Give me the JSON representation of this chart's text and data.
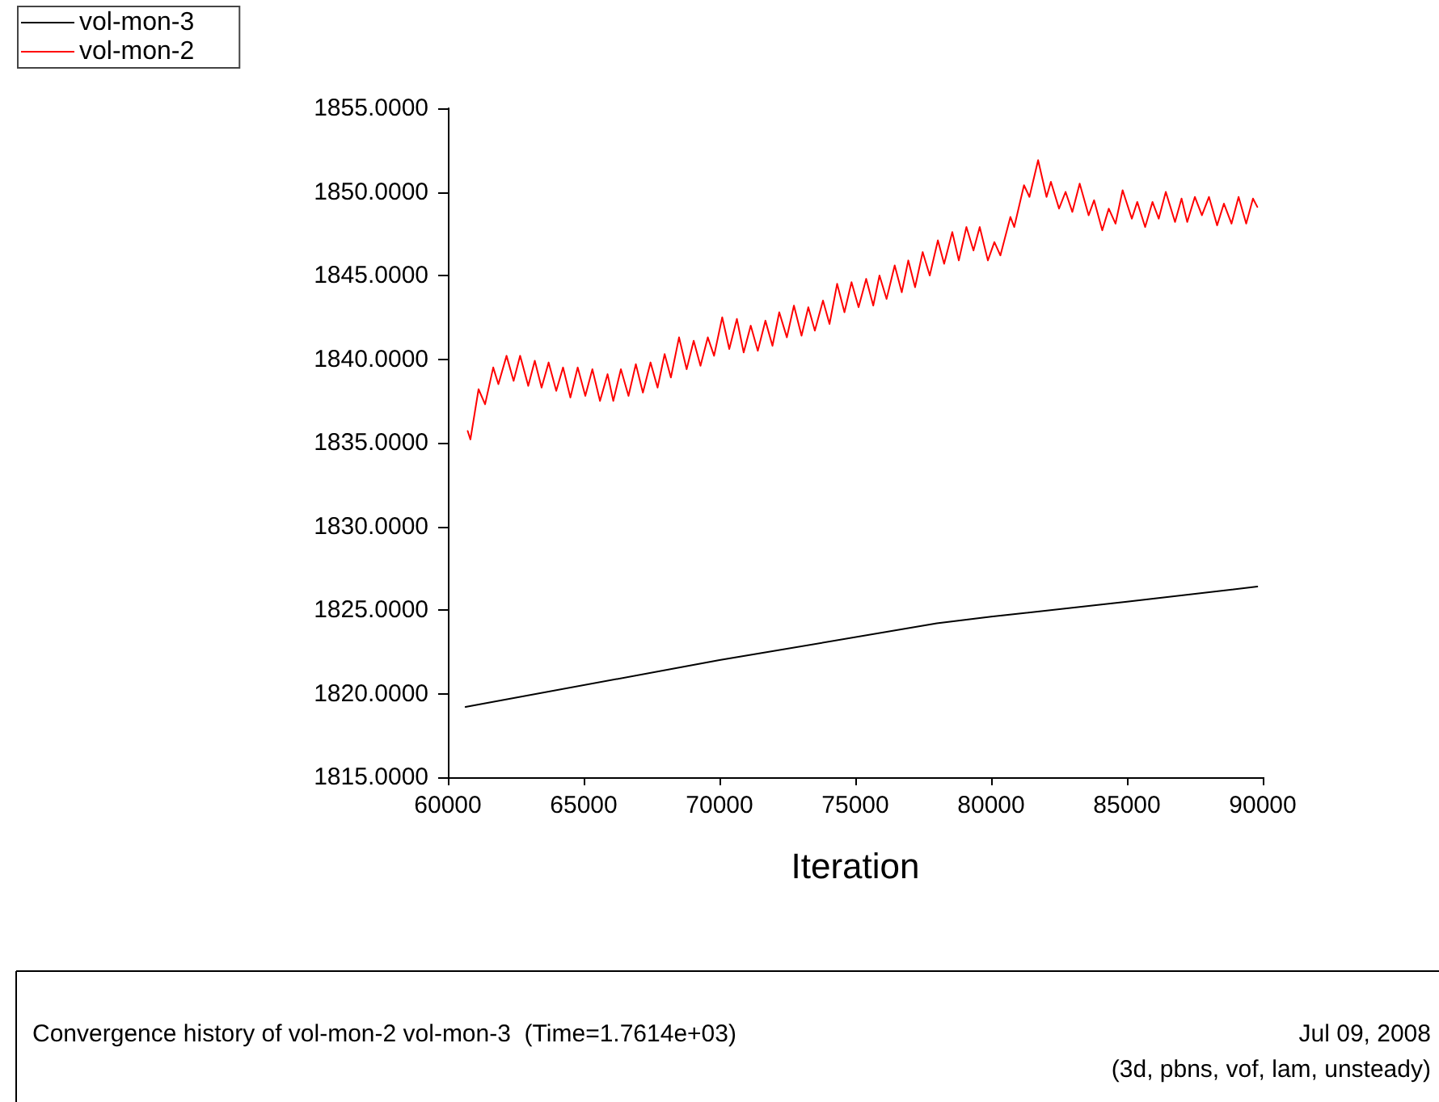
{
  "chart_data": {
    "type": "line",
    "xlabel": "Iteration",
    "xlim": [
      60000,
      90000
    ],
    "xticks": [
      60000,
      65000,
      70000,
      75000,
      80000,
      85000,
      90000
    ],
    "ylim": [
      1815,
      1855
    ],
    "yticks": [
      {
        "value": 1815,
        "label": "1815.0000"
      },
      {
        "value": 1820,
        "label": "1820.0000"
      },
      {
        "value": 1825,
        "label": "1825.0000"
      },
      {
        "value": 1830,
        "label": "1830.0000"
      },
      {
        "value": 1835,
        "label": "1835.0000"
      },
      {
        "value": 1840,
        "label": "1840.0000"
      },
      {
        "value": 1845,
        "label": "1845.0000"
      },
      {
        "value": 1850,
        "label": "1850.0000"
      },
      {
        "value": 1855,
        "label": "1855.0000"
      }
    ],
    "grid": false,
    "legend": "top left",
    "marker": "none",
    "line_style": "solid",
    "annotations": [
      "Convergence history of vol-mon-2 vol-mon-3  (Time=1.7614e+03)",
      "Jul 09, 2008",
      "(3d, pbns, vof, lam, unsteady)"
    ],
    "series": [
      {
        "name": "vol-mon-3",
        "color": "#000000",
        "x": [
          60650,
          70000,
          78000,
          80000,
          85000,
          89800
        ],
        "values": [
          1819.2,
          1822.0,
          1824.2,
          1824.6,
          1825.5,
          1826.4
        ]
      },
      {
        "name": "vol-mon-2",
        "color": "#ff0000",
        "x": [
          60730,
          60830,
          61130,
          61370,
          61670,
          61860,
          62160,
          62420,
          62660,
          62960,
          63200,
          63450,
          63710,
          63990,
          64240,
          64510,
          64780,
          65060,
          65320,
          65600,
          65880,
          66090,
          66370,
          66650,
          66920,
          67180,
          67460,
          67720,
          67980,
          68210,
          68510,
          68790,
          69050,
          69300,
          69570,
          69800,
          70100,
          70360,
          70640,
          70890,
          71150,
          71410,
          71690,
          71950,
          72200,
          72480,
          72740,
          73020,
          73270,
          73510,
          73810,
          74050,
          74330,
          74600,
          74860,
          75120,
          75400,
          75660,
          75890,
          76150,
          76450,
          76710,
          76950,
          77200,
          77480,
          77740,
          78040,
          78270,
          78570,
          78810,
          79090,
          79350,
          79580,
          79880,
          80120,
          80340,
          80710,
          80850,
          81210,
          81410,
          81730,
          82040,
          82200,
          82500,
          82740,
          82990,
          83260,
          83590,
          83790,
          84090,
          84330,
          84580,
          84840,
          85180,
          85380,
          85670,
          85940,
          86170,
          86430,
          86770,
          87010,
          87220,
          87500,
          87760,
          88020,
          88320,
          88570,
          88850,
          89110,
          89390,
          89640,
          89800
        ],
        "values": [
          1835.7,
          1835.2,
          1838.2,
          1837.3,
          1839.5,
          1838.5,
          1840.2,
          1838.7,
          1840.2,
          1838.4,
          1839.9,
          1838.3,
          1839.8,
          1838.1,
          1839.5,
          1837.7,
          1839.5,
          1837.8,
          1839.4,
          1837.5,
          1839.1,
          1837.5,
          1839.4,
          1837.8,
          1839.7,
          1838.0,
          1839.8,
          1838.3,
          1840.3,
          1838.9,
          1841.3,
          1839.4,
          1841.1,
          1839.6,
          1841.3,
          1840.2,
          1842.5,
          1840.6,
          1842.4,
          1840.4,
          1842.0,
          1840.5,
          1842.3,
          1840.8,
          1842.8,
          1841.3,
          1843.2,
          1841.4,
          1843.1,
          1841.7,
          1843.5,
          1842.1,
          1844.5,
          1842.8,
          1844.6,
          1843.1,
          1844.8,
          1843.2,
          1845.0,
          1843.6,
          1845.6,
          1844.0,
          1845.9,
          1844.3,
          1846.4,
          1845.0,
          1847.1,
          1845.7,
          1847.6,
          1845.9,
          1847.9,
          1846.5,
          1847.9,
          1845.9,
          1847.0,
          1846.2,
          1848.5,
          1847.9,
          1850.4,
          1849.7,
          1851.9,
          1849.7,
          1850.6,
          1849.0,
          1850.0,
          1848.8,
          1850.5,
          1848.6,
          1849.5,
          1847.7,
          1849.0,
          1848.1,
          1850.1,
          1848.4,
          1849.4,
          1847.9,
          1849.4,
          1848.4,
          1850.0,
          1848.2,
          1849.6,
          1848.2,
          1849.7,
          1848.6,
          1849.7,
          1848.0,
          1849.3,
          1848.1,
          1849.7,
          1848.1,
          1849.6,
          1849.1
        ]
      }
    ]
  }
}
